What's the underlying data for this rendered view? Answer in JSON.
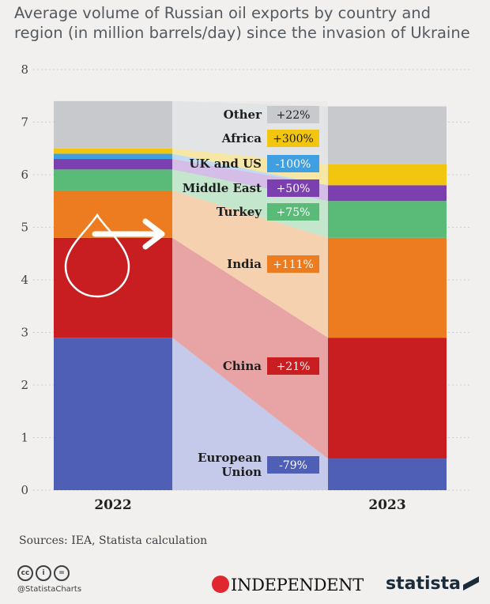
{
  "title": "Average volume of Russian oil exports by country and region (in million barrels/day) since the invasion of Ukraine",
  "sources": "Sources: IEA, Statista calculation",
  "handle": "@StatistaCharts",
  "publisher": "INDEPENDENT",
  "brand": "statista",
  "chart_data": {
    "type": "bar",
    "stacked": true,
    "categories": [
      "2022",
      "2023"
    ],
    "ylim": [
      0,
      8
    ],
    "yticks": [
      0,
      1,
      2,
      3,
      4,
      5,
      6,
      7,
      8
    ],
    "grid": true,
    "series": [
      {
        "name": "European Union",
        "change": "-79%",
        "color": "#4f5fb6",
        "connector": "#c5c9ea",
        "values": [
          2.9,
          0.6
        ]
      },
      {
        "name": "China",
        "change": "+21%",
        "color": "#c81e22",
        "connector": "#e8a3a4",
        "values": [
          1.9,
          2.3
        ]
      },
      {
        "name": "India",
        "change": "+111%",
        "color": "#ec7c1f",
        "connector": "#f6d1b0",
        "values": [
          0.9,
          1.9
        ]
      },
      {
        "name": "Turkey",
        "change": "+75%",
        "color": "#5aba78",
        "connector": "#c3e6cc",
        "values": [
          0.4,
          0.7
        ]
      },
      {
        "name": "Middle East",
        "change": "+50%",
        "color": "#7b3fb0",
        "connector": "#d4bde6",
        "values": [
          0.2,
          0.3
        ]
      },
      {
        "name": "UK and US",
        "change": "-100%",
        "color": "#3f9fe0",
        "connector": "#c0dcf2",
        "values": [
          0.1,
          0.0
        ]
      },
      {
        "name": "Africa",
        "change": "+300%",
        "color": "#f2c50f",
        "connector": "#f7e7a6",
        "values": [
          0.1,
          0.4
        ]
      },
      {
        "name": "Other",
        "change": "+22%",
        "color": "#c8c9cc",
        "connector": "#e3e4e6",
        "values": [
          0.9,
          1.1
        ]
      }
    ]
  }
}
